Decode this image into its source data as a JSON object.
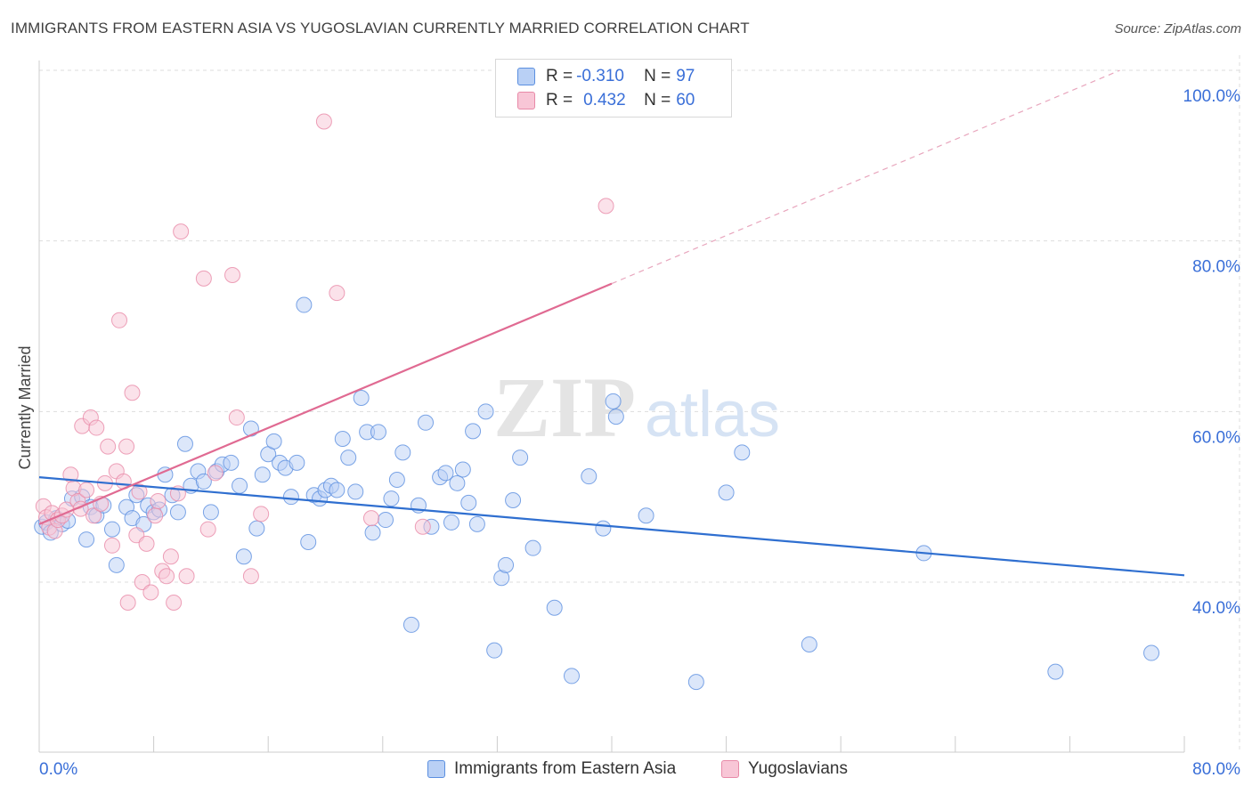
{
  "title": "IMMIGRANTS FROM EASTERN ASIA VS YUGOSLAVIAN CURRENTLY MARRIED CORRELATION CHART",
  "source": "Source: ZipAtlas.com",
  "watermark": {
    "zip": "ZIP",
    "atlas": "atlas"
  },
  "colors": {
    "blue": "#5b8fe0",
    "blue_fill": "#b9d0f5",
    "blue_line": "#2f6fd0",
    "pink": "#e88aa8",
    "pink_fill": "#f8c6d6",
    "pink_line": "#e06a92",
    "axis_label": "#3a6fd8"
  },
  "legend": {
    "rows": [
      {
        "r_label": "R = ",
        "r_value": "-0.310",
        "n_label": "N = ",
        "n_value": "97"
      },
      {
        "r_label": "R = ",
        "r_value": "0.432",
        "n_label": "N = ",
        "n_value": "60"
      }
    ]
  },
  "bottom_legend": [
    "Immigrants from Eastern Asia",
    "Yugoslavians"
  ],
  "chart_data": {
    "type": "scatter",
    "title": "IMMIGRANTS FROM EASTERN ASIA VS YUGOSLAVIAN CURRENTLY MARRIED CORRELATION CHART",
    "xlabel": "",
    "ylabel": "Currently Married",
    "xlim": [
      0,
      80
    ],
    "ylim": [
      20,
      103
    ],
    "x_tick_labels": [
      "0.0%",
      "80.0%"
    ],
    "y_ticks": [
      40,
      60,
      80,
      100
    ],
    "y_tick_labels": [
      "40.0%",
      "60.0%",
      "80.0%",
      "100.0%"
    ],
    "grid": true,
    "legend_position": "top-center",
    "series": [
      {
        "name": "Immigrants from Eastern Asia",
        "r": -0.31,
        "n": 97,
        "trend": {
          "x": [
            0,
            80
          ],
          "y": [
            52.3,
            40.8
          ]
        },
        "points": [
          [
            0.2,
            46.5
          ],
          [
            0.5,
            47.0
          ],
          [
            0.8,
            45.8
          ],
          [
            1.2,
            47.5
          ],
          [
            1.6,
            46.8
          ],
          [
            2.0,
            47.2
          ],
          [
            2.3,
            49.8
          ],
          [
            3.0,
            50.0
          ],
          [
            3.3,
            45.0
          ],
          [
            3.6,
            48.8
          ],
          [
            4.0,
            47.8
          ],
          [
            4.5,
            49.0
          ],
          [
            5.1,
            46.2
          ],
          [
            5.4,
            42.0
          ],
          [
            6.1,
            48.8
          ],
          [
            6.5,
            47.5
          ],
          [
            6.8,
            50.2
          ],
          [
            7.3,
            46.8
          ],
          [
            7.6,
            49.0
          ],
          [
            8.0,
            48.2
          ],
          [
            8.4,
            48.5
          ],
          [
            8.8,
            52.6
          ],
          [
            9.3,
            50.2
          ],
          [
            9.7,
            48.2
          ],
          [
            10.2,
            56.2
          ],
          [
            10.6,
            51.3
          ],
          [
            11.1,
            53.0
          ],
          [
            11.5,
            51.8
          ],
          [
            12.0,
            48.2
          ],
          [
            12.4,
            53.0
          ],
          [
            12.8,
            53.8
          ],
          [
            13.4,
            54.0
          ],
          [
            14.0,
            51.3
          ],
          [
            14.3,
            43.0
          ],
          [
            14.8,
            58.0
          ],
          [
            15.2,
            46.3
          ],
          [
            15.6,
            52.6
          ],
          [
            16.0,
            55.0
          ],
          [
            16.4,
            56.5
          ],
          [
            16.8,
            54.0
          ],
          [
            17.2,
            53.4
          ],
          [
            17.6,
            50.0
          ],
          [
            18.0,
            54.0
          ],
          [
            18.5,
            72.5
          ],
          [
            18.8,
            44.7
          ],
          [
            19.2,
            50.2
          ],
          [
            19.6,
            49.8
          ],
          [
            20.0,
            50.8
          ],
          [
            20.4,
            51.3
          ],
          [
            20.8,
            50.8
          ],
          [
            21.2,
            56.8
          ],
          [
            21.6,
            54.6
          ],
          [
            22.1,
            50.6
          ],
          [
            22.5,
            61.6
          ],
          [
            22.9,
            57.6
          ],
          [
            23.3,
            45.8
          ],
          [
            23.7,
            57.6
          ],
          [
            24.2,
            47.3
          ],
          [
            24.6,
            49.8
          ],
          [
            25.0,
            52.0
          ],
          [
            25.4,
            55.2
          ],
          [
            26.0,
            35.0
          ],
          [
            26.5,
            49.0
          ],
          [
            27.0,
            58.7
          ],
          [
            27.4,
            46.5
          ],
          [
            28.0,
            52.3
          ],
          [
            28.4,
            52.8
          ],
          [
            28.8,
            47.0
          ],
          [
            29.2,
            51.6
          ],
          [
            29.6,
            53.2
          ],
          [
            30.0,
            49.3
          ],
          [
            30.3,
            57.7
          ],
          [
            30.6,
            46.8
          ],
          [
            31.2,
            60.0
          ],
          [
            31.8,
            32.0
          ],
          [
            32.3,
            40.5
          ],
          [
            32.6,
            42.0
          ],
          [
            33.1,
            49.6
          ],
          [
            33.6,
            54.6
          ],
          [
            34.5,
            44.0
          ],
          [
            36.0,
            37.0
          ],
          [
            37.2,
            29.0
          ],
          [
            38.4,
            52.4
          ],
          [
            39.4,
            46.3
          ],
          [
            40.1,
            61.2
          ],
          [
            40.3,
            59.4
          ],
          [
            42.4,
            47.8
          ],
          [
            45.9,
            28.3
          ],
          [
            48.0,
            50.5
          ],
          [
            49.1,
            55.2
          ],
          [
            53.8,
            32.7
          ],
          [
            61.8,
            43.4
          ],
          [
            71.0,
            29.5
          ],
          [
            77.7,
            31.7
          ]
        ]
      },
      {
        "name": "Yugoslavians",
        "r": 0.432,
        "n": 60,
        "trend": {
          "x": [
            0,
            40
          ],
          "y": [
            46.8,
            75.0
          ]
        },
        "trend_extension": {
          "x": [
            40,
            75.5
          ],
          "y": [
            75.0,
            100.0
          ]
        },
        "points": [
          [
            0.3,
            48.9
          ],
          [
            0.5,
            47.6
          ],
          [
            0.7,
            46.4
          ],
          [
            0.9,
            48.1
          ],
          [
            1.1,
            46.0
          ],
          [
            1.3,
            47.3
          ],
          [
            1.6,
            47.8
          ],
          [
            1.9,
            48.5
          ],
          [
            2.2,
            52.6
          ],
          [
            2.4,
            51.0
          ],
          [
            2.7,
            49.5
          ],
          [
            2.9,
            48.6
          ],
          [
            3.0,
            58.3
          ],
          [
            3.3,
            50.8
          ],
          [
            3.6,
            59.3
          ],
          [
            3.8,
            47.8
          ],
          [
            4.0,
            58.1
          ],
          [
            4.3,
            49.2
          ],
          [
            4.6,
            51.6
          ],
          [
            4.8,
            55.9
          ],
          [
            5.1,
            44.3
          ],
          [
            5.4,
            53.0
          ],
          [
            5.6,
            70.7
          ],
          [
            5.9,
            51.8
          ],
          [
            6.1,
            55.9
          ],
          [
            6.2,
            37.6
          ],
          [
            6.5,
            62.2
          ],
          [
            6.8,
            45.5
          ],
          [
            7.0,
            50.6
          ],
          [
            7.2,
            40.0
          ],
          [
            7.5,
            44.5
          ],
          [
            7.8,
            38.8
          ],
          [
            8.1,
            47.8
          ],
          [
            8.3,
            49.5
          ],
          [
            8.6,
            41.3
          ],
          [
            8.9,
            40.7
          ],
          [
            9.2,
            43.0
          ],
          [
            9.4,
            37.6
          ],
          [
            9.7,
            50.4
          ],
          [
            9.9,
            81.1
          ],
          [
            10.3,
            40.7
          ],
          [
            11.5,
            75.6
          ],
          [
            11.8,
            46.2
          ],
          [
            12.3,
            52.8
          ],
          [
            13.5,
            76.0
          ],
          [
            13.8,
            59.3
          ],
          [
            14.8,
            40.7
          ],
          [
            15.5,
            48.0
          ],
          [
            19.9,
            94.0
          ],
          [
            20.8,
            73.9
          ],
          [
            23.2,
            47.5
          ],
          [
            26.8,
            46.5
          ],
          [
            39.6,
            84.1
          ]
        ]
      }
    ]
  }
}
